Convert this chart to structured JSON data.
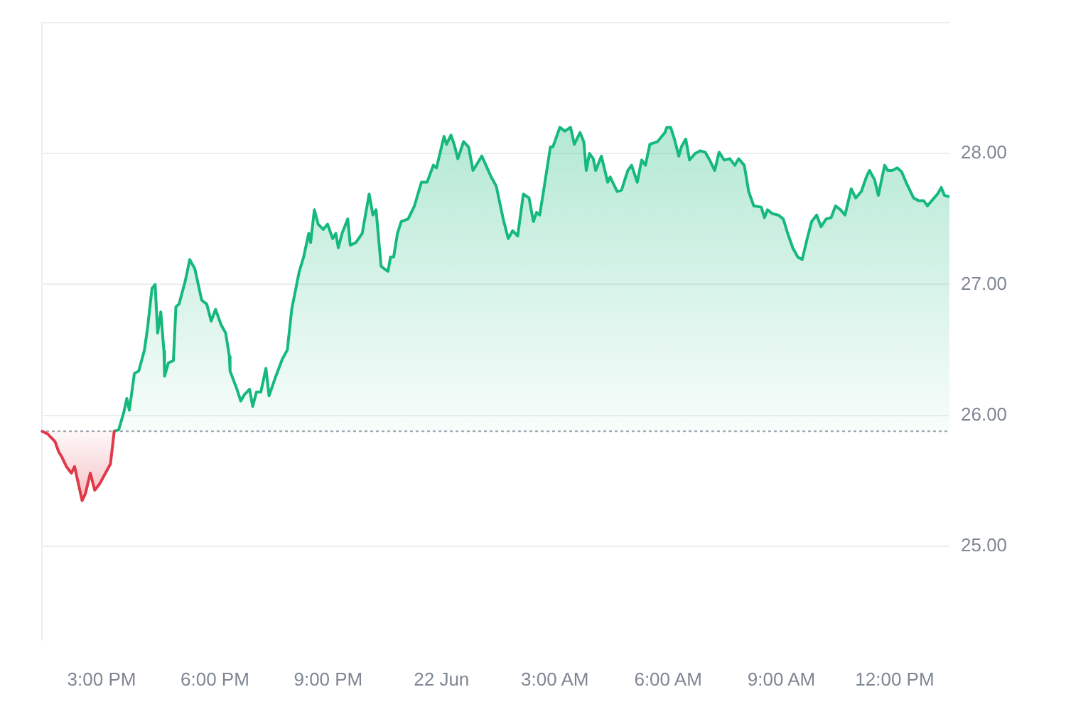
{
  "chart_data": {
    "type": "area",
    "xlim": [
      "--06-21T13:24",
      "--06-22T13:27"
    ],
    "xticks": [
      {
        "value": "--06-21T15:00",
        "label": "3:00 PM"
      },
      {
        "value": "--06-21T18:00",
        "label": "6:00 PM"
      },
      {
        "value": "--06-21T21:00",
        "label": "9:00 PM"
      },
      {
        "value": "--06-22T00:00",
        "label": "22 Jun"
      },
      {
        "value": "--06-22T03:00",
        "label": "3:00 AM"
      },
      {
        "value": "--06-22T06:00",
        "label": "6:00 AM"
      },
      {
        "value": "--06-22T09:00",
        "label": "9:00 AM"
      },
      {
        "value": "--06-22T12:00",
        "label": "12:00 PM"
      }
    ],
    "ylim": [
      24.28,
      29
    ],
    "yticks": [
      {
        "value": 25,
        "label": "25.00"
      },
      {
        "value": 26,
        "label": "26.00"
      },
      {
        "value": 27,
        "label": "27.00"
      },
      {
        "value": 28,
        "label": "28.00"
      },
      {
        "value": 29,
        "label": null
      }
    ],
    "grid": "y",
    "marker": "none",
    "ref_lines": [
      {
        "axis": "y",
        "value": 25.88,
        "line_style": "dotted",
        "color": "#a3a9b4"
      }
    ],
    "series": [
      {
        "color": "#e0394a",
        "x": [
          "--06-21T13:25",
          "--06-21T13:34",
          "--06-21T13:46",
          "--06-21T13:52",
          "--06-21T13:56",
          "--06-21T14:04",
          "--06-21T14:12",
          "--06-21T14:17",
          "--06-21T14:23",
          "--06-21T14:29",
          "--06-21T14:34",
          "--06-21T14:42",
          "--06-21T14:49",
          "--06-21T14:57",
          "--06-21T15:05",
          "--06-21T15:14",
          "--06-21T15:20"
        ],
        "values": [
          25.88,
          25.86,
          25.8,
          25.72,
          25.69,
          25.61,
          25.56,
          25.61,
          25.48,
          25.35,
          25.4,
          25.56,
          25.43,
          25.48,
          25.55,
          25.63,
          25.88
        ]
      },
      {
        "color": "#16b97c",
        "x": [
          "--06-21T15:20",
          "--06-21T15:27",
          "--06-21T15:35",
          "--06-21T15:40",
          "--06-21T15:44",
          "--06-21T15:52",
          "--06-21T15:59",
          "--06-21T16:08",
          "--06-21T16:13",
          "--06-21T16:20",
          "--06-21T16:25",
          "--06-21T16:29",
          "--06-21T16:34",
          "--06-21T16:39",
          "--06-21T16:40",
          "--06-21T16:46",
          "--06-21T16:54",
          "--06-21T16:58",
          "--06-21T17:03",
          "--06-21T17:13",
          "--06-21T17:20",
          "--06-21T17:28",
          "--06-21T17:39",
          "--06-21T17:47",
          "--06-21T17:54",
          "--06-21T18:01",
          "--06-21T18:10",
          "--06-21T18:17",
          "--06-21T18:23",
          "--06-21T18:24",
          "--06-21T18:35",
          "--06-21T18:41",
          "--06-21T18:47",
          "--06-21T18:55",
          "--06-21T19:00",
          "--06-21T19:06",
          "--06-21T19:13",
          "--06-21T19:21",
          "--06-21T19:26",
          "--06-21T19:36",
          "--06-21T19:47",
          "--06-21T19:55",
          "--06-21T20:02",
          "--06-21T20:14",
          "--06-21T20:21",
          "--06-21T20:29",
          "--06-21T20:32",
          "--06-21T20:38",
          "--06-21T20:44",
          "--06-21T20:52",
          "--06-21T20:59",
          "--06-21T21:07",
          "--06-21T21:12",
          "--06-21T21:16",
          "--06-21T21:22",
          "--06-21T21:31",
          "--06-21T21:35",
          "--06-21T21:44",
          "--06-21T21:54",
          "--06-21T22:05",
          "--06-21T22:11",
          "--06-21T22:16",
          "--06-21T22:24",
          "--06-21T22:29",
          "--06-21T22:35",
          "--06-21T22:39",
          "--06-21T22:44",
          "--06-21T22:50",
          "--06-21T22:56",
          "--06-21T23:07",
          "--06-21T23:17",
          "--06-21T23:28",
          "--06-21T23:37",
          "--06-21T23:47",
          "--06-21T23:52",
          "--06-22T00:04",
          "--06-22T00:08",
          "--06-22T00:15",
          "--06-22T00:20",
          "--06-22T00:26",
          "--06-22T00:35",
          "--06-22T00:43",
          "--06-22T00:50",
          "--06-22T01:04",
          "--06-22T01:19",
          "--06-22T01:27",
          "--06-22T01:38",
          "--06-22T01:46",
          "--06-22T01:53",
          "--06-22T02:01",
          "--06-22T02:10",
          "--06-22T02:19",
          "--06-22T02:26",
          "--06-22T02:31",
          "--06-22T02:36",
          "--06-22T02:42",
          "--06-22T02:53",
          "--06-22T02:57",
          "--06-22T03:08",
          "--06-22T03:16",
          "--06-22T03:25",
          "--06-22T03:31",
          "--06-22T03:40",
          "--06-22T03:46",
          "--06-22T03:50",
          "--06-22T03:55",
          "--06-22T04:01",
          "--06-22T04:05",
          "--06-22T04:14",
          "--06-22T04:24",
          "--06-22T04:28",
          "--06-22T04:39",
          "--06-22T04:46",
          "--06-22T04:56",
          "--06-22T05:02",
          "--06-22T05:11",
          "--06-22T05:18",
          "--06-22T05:24",
          "--06-22T05:31",
          "--06-22T05:43",
          "--06-22T05:55",
          "--06-22T05:58",
          "--06-22T06:04",
          "--06-22T06:10",
          "--06-22T06:17",
          "--06-22T06:21",
          "--06-22T06:28",
          "--06-22T06:34",
          "--06-22T06:43",
          "--06-22T06:51",
          "--06-22T06:59",
          "--06-22T07:06",
          "--06-22T07:14",
          "--06-22T07:21",
          "--06-22T07:29",
          "--06-22T07:38",
          "--06-22T07:46",
          "--06-22T07:52",
          "--06-22T08:01",
          "--06-22T08:08",
          "--06-22T08:16",
          "--06-22T08:28",
          "--06-22T08:33",
          "--06-22T08:38",
          "--06-22T08:46",
          "--06-22T08:55",
          "--06-22T09:03",
          "--06-22T09:10",
          "--06-22T09:18",
          "--06-22T09:26",
          "--06-22T09:33",
          "--06-22T09:41",
          "--06-22T09:48",
          "--06-22T09:56",
          "--06-22T10:03",
          "--06-22T10:11",
          "--06-22T10:19",
          "--06-22T10:26",
          "--06-22T10:34",
          "--06-22T10:41",
          "--06-22T10:51",
          "--06-22T10:58",
          "--06-22T11:07",
          "--06-22T11:15",
          "--06-22T11:20",
          "--06-22T11:28",
          "--06-22T11:34",
          "--06-22T11:44",
          "--06-22T11:49",
          "--06-22T11:56",
          "--06-22T12:04",
          "--06-22T12:11",
          "--06-22T12:19",
          "--06-22T12:30",
          "--06-22T12:38",
          "--06-22T12:46",
          "--06-22T12:52",
          "--06-22T12:59",
          "--06-22T13:08",
          "--06-22T13:14",
          "--06-22T13:19",
          "--06-22T13:27"
        ],
        "values": [
          25.88,
          25.89,
          26.02,
          26.13,
          26.04,
          26.32,
          26.34,
          26.5,
          26.67,
          26.97,
          27.0,
          26.63,
          26.79,
          26.49,
          26.3,
          26.4,
          26.42,
          26.83,
          26.85,
          27.03,
          27.19,
          27.12,
          26.88,
          26.85,
          26.72,
          26.81,
          26.69,
          26.63,
          26.45,
          26.34,
          26.2,
          26.11,
          26.16,
          26.2,
          26.07,
          26.18,
          26.18,
          26.36,
          26.15,
          26.29,
          26.43,
          26.5,
          26.81,
          27.1,
          27.21,
          27.39,
          27.32,
          27.57,
          27.46,
          27.42,
          27.46,
          27.35,
          27.39,
          27.28,
          27.39,
          27.5,
          27.3,
          27.32,
          27.39,
          27.69,
          27.53,
          27.57,
          27.14,
          27.12,
          27.1,
          27.21,
          27.21,
          27.39,
          27.48,
          27.5,
          27.6,
          27.78,
          27.78,
          27.91,
          27.89,
          28.13,
          28.07,
          28.14,
          28.07,
          27.96,
          28.09,
          28.05,
          27.87,
          27.98,
          27.82,
          27.75,
          27.5,
          27.35,
          27.41,
          27.37,
          27.69,
          27.66,
          27.48,
          27.55,
          27.53,
          27.71,
          28.05,
          28.05,
          28.2,
          28.17,
          28.2,
          28.07,
          28.16,
          28.09,
          27.87,
          28.0,
          27.96,
          27.87,
          27.98,
          27.78,
          27.82,
          27.71,
          27.72,
          27.87,
          27.91,
          27.78,
          27.95,
          27.91,
          28.07,
          28.09,
          28.16,
          28.2,
          28.2,
          28.11,
          27.98,
          28.05,
          28.11,
          27.95,
          28.0,
          28.02,
          28.01,
          27.95,
          27.87,
          28.01,
          27.95,
          27.96,
          27.91,
          27.96,
          27.91,
          27.71,
          27.6,
          27.59,
          27.51,
          27.57,
          27.54,
          27.53,
          27.5,
          27.39,
          27.28,
          27.21,
          27.19,
          27.35,
          27.48,
          27.53,
          27.44,
          27.5,
          27.51,
          27.6,
          27.57,
          27.53,
          27.73,
          27.66,
          27.71,
          27.82,
          27.87,
          27.8,
          27.68,
          27.91,
          27.87,
          27.87,
          27.89,
          27.86,
          27.77,
          27.66,
          27.64,
          27.64,
          27.6,
          27.64,
          27.69,
          27.74,
          27.68,
          27.67
        ]
      }
    ]
  }
}
